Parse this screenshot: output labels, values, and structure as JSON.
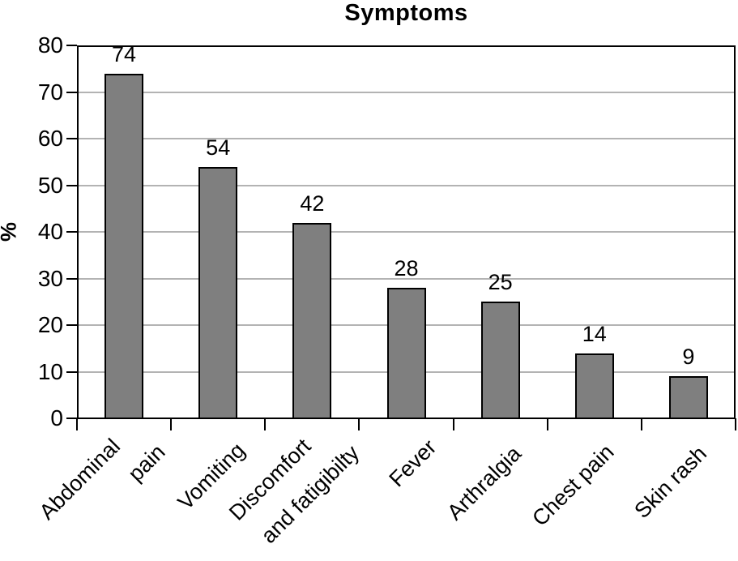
{
  "chart_data": {
    "type": "bar",
    "title": "Symptoms",
    "ylabel": "%",
    "categories": [
      "Abdominal pain",
      "Vomiting",
      "Discomfort and fatigibilty",
      "Fever",
      "Arthralgia",
      "Chest pain",
      "Skin rash"
    ],
    "category_label_lines": [
      [
        "Abdominal",
        "pain"
      ],
      [
        "Vomiting"
      ],
      [
        "Discomfort",
        "and fatigibilty"
      ],
      [
        "Fever"
      ],
      [
        "Arthralgia"
      ],
      [
        "Chest pain"
      ],
      [
        "Skin rash"
      ]
    ],
    "values": [
      74,
      54,
      42,
      28,
      25,
      14,
      9
    ],
    "ylim": [
      0,
      80
    ],
    "yticks": [
      0,
      10,
      20,
      30,
      40,
      50,
      60,
      70,
      80
    ],
    "grid": "horizontal-gridlines-on",
    "legend": "none",
    "colors": {
      "bar_fill": "#7f7f7f",
      "bar_border": "#000000",
      "gridline": "#b3b3b3",
      "axis": "#000000",
      "text": "#000000",
      "background": "#ffffff"
    }
  }
}
